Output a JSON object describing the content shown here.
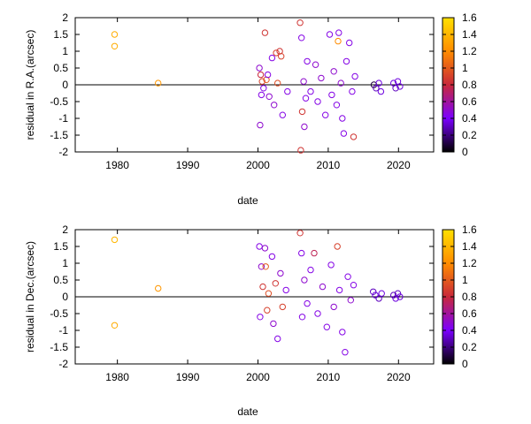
{
  "chart_data": [
    {
      "type": "scatter",
      "xlabel": "date",
      "ylabel": "residual in R.A.(arcsec)",
      "xlim": [
        1974,
        2025
      ],
      "ylim": [
        -2,
        2
      ],
      "xticks": [
        "1980",
        "1990",
        "2000",
        "2010",
        "2020"
      ],
      "yticks": [
        "-2",
        "-1.5",
        "-1",
        "-0.5",
        "0",
        "0.5",
        "1",
        "1.5",
        "2"
      ],
      "colorbar": {
        "range": [
          0,
          1.6
        ],
        "ticks": [
          "0",
          "0.2",
          "0.4",
          "0.6",
          "0.8",
          "1",
          "1.2",
          "1.4",
          "1.6"
        ],
        "palette": [
          "#000000",
          "#7b00ff",
          "#c8283a",
          "#ff8c00",
          "#ffe000"
        ]
      },
      "zero_line": true,
      "grid": false,
      "points": [
        {
          "x": 1979.6,
          "y": 1.5,
          "c": 1.35
        },
        {
          "x": 1979.6,
          "y": 1.15,
          "c": 1.35
        },
        {
          "x": 1985.8,
          "y": 0.05,
          "c": 1.25
        },
        {
          "x": 2000.2,
          "y": 0.5,
          "c": 0.5
        },
        {
          "x": 2000.3,
          "y": -1.2,
          "c": 0.5
        },
        {
          "x": 2000.4,
          "y": 0.3,
          "c": 0.8
        },
        {
          "x": 2000.5,
          "y": -0.3,
          "c": 0.45
        },
        {
          "x": 2000.6,
          "y": 0.1,
          "c": 0.9
        },
        {
          "x": 2000.8,
          "y": -0.1,
          "c": 0.45
        },
        {
          "x": 2001.0,
          "y": 1.55,
          "c": 0.85
        },
        {
          "x": 2001.2,
          "y": 0.15,
          "c": 1.0
        },
        {
          "x": 2001.4,
          "y": 0.3,
          "c": 0.45
        },
        {
          "x": 2001.6,
          "y": -0.35,
          "c": 0.5
        },
        {
          "x": 2002.0,
          "y": 0.8,
          "c": 0.45
        },
        {
          "x": 2002.3,
          "y": -0.6,
          "c": 0.5
        },
        {
          "x": 2002.6,
          "y": 0.95,
          "c": 0.9
        },
        {
          "x": 2002.8,
          "y": 0.05,
          "c": 0.95
        },
        {
          "x": 2003.1,
          "y": 1.0,
          "c": 0.85
        },
        {
          "x": 2003.3,
          "y": 0.85,
          "c": 0.9
        },
        {
          "x": 2003.5,
          "y": -0.9,
          "c": 0.45
        },
        {
          "x": 2004.2,
          "y": -0.2,
          "c": 0.45
        },
        {
          "x": 2006.0,
          "y": 1.85,
          "c": 0.85
        },
        {
          "x": 2006.1,
          "y": -1.95,
          "c": 0.85
        },
        {
          "x": 2006.2,
          "y": 1.4,
          "c": 0.45
        },
        {
          "x": 2006.3,
          "y": -0.8,
          "c": 0.85
        },
        {
          "x": 2006.5,
          "y": 0.1,
          "c": 0.5
        },
        {
          "x": 2006.6,
          "y": -1.25,
          "c": 0.5
        },
        {
          "x": 2006.8,
          "y": -0.4,
          "c": 0.45
        },
        {
          "x": 2007.0,
          "y": 0.7,
          "c": 0.45
        },
        {
          "x": 2007.5,
          "y": -0.2,
          "c": 0.45
        },
        {
          "x": 2008.2,
          "y": 0.6,
          "c": 0.5
        },
        {
          "x": 2008.5,
          "y": -0.5,
          "c": 0.45
        },
        {
          "x": 2009.0,
          "y": 0.2,
          "c": 0.5
        },
        {
          "x": 2009.6,
          "y": -0.9,
          "c": 0.45
        },
        {
          "x": 2010.2,
          "y": 1.5,
          "c": 0.45
        },
        {
          "x": 2010.5,
          "y": -0.3,
          "c": 0.45
        },
        {
          "x": 2010.8,
          "y": 0.4,
          "c": 0.5
        },
        {
          "x": 2011.2,
          "y": -0.6,
          "c": 0.45
        },
        {
          "x": 2011.4,
          "y": 1.3,
          "c": 1.2
        },
        {
          "x": 2011.5,
          "y": 1.55,
          "c": 0.45
        },
        {
          "x": 2011.8,
          "y": 0.05,
          "c": 0.5
        },
        {
          "x": 2012.0,
          "y": -1.0,
          "c": 0.45
        },
        {
          "x": 2012.2,
          "y": -1.45,
          "c": 0.45
        },
        {
          "x": 2012.6,
          "y": 0.7,
          "c": 0.45
        },
        {
          "x": 2013.0,
          "y": 1.25,
          "c": 0.45
        },
        {
          "x": 2013.4,
          "y": -0.2,
          "c": 0.45
        },
        {
          "x": 2013.6,
          "y": -1.55,
          "c": 0.85
        },
        {
          "x": 2013.8,
          "y": 0.25,
          "c": 0.45
        },
        {
          "x": 2016.5,
          "y": 0.0,
          "c": 0.1
        },
        {
          "x": 2016.8,
          "y": -0.1,
          "c": 0.3
        },
        {
          "x": 2017.2,
          "y": 0.05,
          "c": 0.35
        },
        {
          "x": 2017.5,
          "y": -0.2,
          "c": 0.35
        },
        {
          "x": 2019.3,
          "y": 0.05,
          "c": 0.35
        },
        {
          "x": 2019.6,
          "y": -0.1,
          "c": 0.3
        },
        {
          "x": 2019.9,
          "y": 0.1,
          "c": 0.35
        },
        {
          "x": 2020.2,
          "y": -0.05,
          "c": 0.35
        }
      ]
    },
    {
      "type": "scatter",
      "xlabel": "date",
      "ylabel": "residual in Dec.(arcsec)",
      "xlim": [
        1974,
        2025
      ],
      "ylim": [
        -2,
        2
      ],
      "xticks": [
        "1980",
        "1990",
        "2000",
        "2010",
        "2020"
      ],
      "yticks": [
        "-2",
        "-1.5",
        "-1",
        "-0.5",
        "0",
        "0.5",
        "1",
        "1.5",
        "2"
      ],
      "colorbar": {
        "range": [
          0,
          1.6
        ],
        "ticks": [
          "0",
          "0.2",
          "0.4",
          "0.6",
          "0.8",
          "1",
          "1.2",
          "1.4",
          "1.6"
        ],
        "palette": [
          "#000000",
          "#7b00ff",
          "#c8283a",
          "#ff8c00",
          "#ffe000"
        ]
      },
      "zero_line": true,
      "grid": false,
      "points": [
        {
          "x": 1979.6,
          "y": 1.7,
          "c": 1.4
        },
        {
          "x": 1979.6,
          "y": -0.85,
          "c": 1.35
        },
        {
          "x": 1985.8,
          "y": 0.25,
          "c": 1.25
        },
        {
          "x": 2000.2,
          "y": 1.5,
          "c": 0.45
        },
        {
          "x": 2000.3,
          "y": -0.6,
          "c": 0.45
        },
        {
          "x": 2000.5,
          "y": 0.9,
          "c": 0.5
        },
        {
          "x": 2000.7,
          "y": 0.3,
          "c": 0.85
        },
        {
          "x": 2001.0,
          "y": 1.45,
          "c": 0.5
        },
        {
          "x": 2001.1,
          "y": 0.9,
          "c": 1.0
        },
        {
          "x": 2001.3,
          "y": -0.4,
          "c": 0.9
        },
        {
          "x": 2001.5,
          "y": 0.1,
          "c": 0.95
        },
        {
          "x": 2002.0,
          "y": 1.2,
          "c": 0.45
        },
        {
          "x": 2002.2,
          "y": -0.8,
          "c": 0.5
        },
        {
          "x": 2002.5,
          "y": 0.4,
          "c": 0.85
        },
        {
          "x": 2002.8,
          "y": -1.25,
          "c": 0.45
        },
        {
          "x": 2003.2,
          "y": 0.7,
          "c": 0.5
        },
        {
          "x": 2003.5,
          "y": -0.3,
          "c": 0.9
        },
        {
          "x": 2004.0,
          "y": 0.2,
          "c": 0.45
        },
        {
          "x": 2006.0,
          "y": 1.9,
          "c": 0.85
        },
        {
          "x": 2006.2,
          "y": 1.3,
          "c": 0.45
        },
        {
          "x": 2006.3,
          "y": -0.6,
          "c": 0.45
        },
        {
          "x": 2006.6,
          "y": 0.5,
          "c": 0.5
        },
        {
          "x": 2007.0,
          "y": -0.2,
          "c": 0.45
        },
        {
          "x": 2007.5,
          "y": 0.8,
          "c": 0.45
        },
        {
          "x": 2008.0,
          "y": 1.3,
          "c": 0.75
        },
        {
          "x": 2008.5,
          "y": -0.5,
          "c": 0.45
        },
        {
          "x": 2009.2,
          "y": 0.3,
          "c": 0.5
        },
        {
          "x": 2009.8,
          "y": -0.9,
          "c": 0.45
        },
        {
          "x": 2010.4,
          "y": 0.95,
          "c": 0.45
        },
        {
          "x": 2010.8,
          "y": -0.3,
          "c": 0.5
        },
        {
          "x": 2011.3,
          "y": 1.5,
          "c": 0.9
        },
        {
          "x": 2011.6,
          "y": 0.2,
          "c": 0.45
        },
        {
          "x": 2012.0,
          "y": -1.05,
          "c": 0.45
        },
        {
          "x": 2012.4,
          "y": -1.65,
          "c": 0.45
        },
        {
          "x": 2012.8,
          "y": 0.6,
          "c": 0.45
        },
        {
          "x": 2013.2,
          "y": -0.1,
          "c": 0.5
        },
        {
          "x": 2013.6,
          "y": 0.35,
          "c": 0.45
        },
        {
          "x": 2016.4,
          "y": 0.15,
          "c": 0.3
        },
        {
          "x": 2016.7,
          "y": 0.05,
          "c": 0.35
        },
        {
          "x": 2017.2,
          "y": -0.05,
          "c": 0.3
        },
        {
          "x": 2017.6,
          "y": 0.1,
          "c": 0.35
        },
        {
          "x": 2019.3,
          "y": 0.05,
          "c": 0.3
        },
        {
          "x": 2019.6,
          "y": -0.05,
          "c": 0.35
        },
        {
          "x": 2019.9,
          "y": 0.1,
          "c": 0.3
        },
        {
          "x": 2020.2,
          "y": 0.0,
          "c": 0.35
        }
      ]
    }
  ]
}
